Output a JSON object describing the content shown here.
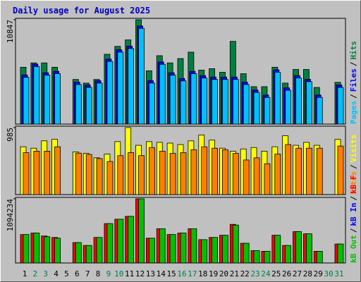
{
  "chart_data": [
    {
      "type": "bar",
      "title": "Daily usage for August 2025",
      "legend_separator": "/",
      "ylim": [
        0,
        10847
      ],
      "yticks": [
        10847
      ],
      "series": [
        {
          "name": "Hits",
          "color": "#008040",
          "values": [
            5910,
            6360,
            6360,
            5910,
            0,
            4640,
            4260,
            4640,
            7260,
            8080,
            8750,
            10847,
            5540,
            7110,
            6360,
            6810,
            7480,
            5610,
            5760,
            5390,
            8600,
            5240,
            3890,
            3890,
            5910,
            4260,
            5680,
            5680,
            3810,
            0,
            4340
          ]
        },
        {
          "name": "Files",
          "color": "#0000ff",
          "values": [
            5110,
            6230,
            5340,
            5490,
            0,
            4360,
            4060,
            4510,
            6760,
            7730,
            8100,
            10200,
            4510,
            6460,
            5340,
            4740,
            5490,
            5040,
            4890,
            4890,
            4890,
            4360,
            3540,
            3020,
            5640,
            3770,
            5040,
            4660,
            3020,
            0,
            4060
          ]
        },
        {
          "name": "Pages",
          "color": "#00c0ff",
          "values": [
            4860,
            5980,
            5090,
            5240,
            0,
            4110,
            3810,
            4260,
            6510,
            7480,
            7850,
            9950,
            4260,
            6210,
            5090,
            4490,
            5240,
            4790,
            4640,
            4640,
            4640,
            4110,
            3290,
            2770,
            5390,
            3520,
            4790,
            4410,
            2770,
            0,
            3810
          ]
        }
      ]
    },
    {
      "type": "bar",
      "legend_separator": "/",
      "ylim": [
        0,
        985
      ],
      "yticks": [
        985
      ],
      "series": [
        {
          "name": "Visits",
          "color": "#ffff00",
          "values": [
            703,
            682,
            790,
            812,
            0,
            628,
            606,
            541,
            595,
            779,
            985,
            725,
            779,
            768,
            757,
            736,
            790,
            876,
            801,
            682,
            638,
            671,
            692,
            638,
            703,
            866,
            725,
            768,
            725,
            0,
            812
          ]
        },
        {
          "name": "Sites",
          "color": "#ff8000",
          "values": [
            617,
            638,
            638,
            703,
            0,
            610,
            590,
            530,
            487,
            573,
            617,
            573,
            692,
            638,
            606,
            617,
            660,
            703,
            682,
            660,
            606,
            509,
            541,
            454,
            595,
            736,
            682,
            682,
            682,
            0,
            714
          ]
        }
      ]
    },
    {
      "type": "bar",
      "legend_separator": "/",
      "ylim": [
        0,
        1094234
      ],
      "yticks": [
        1094234
      ],
      "categories": [
        "1",
        "2",
        "3",
        "4",
        "5",
        "6",
        "7",
        "8",
        "9",
        "10",
        "11",
        "12",
        "13",
        "14",
        "15",
        "16",
        "17",
        "18",
        "19",
        "20",
        "21",
        "22",
        "23",
        "24",
        "25",
        "26",
        "27",
        "28",
        "29",
        "30",
        "31"
      ],
      "weekend_indices": [
        1,
        2,
        8,
        9,
        15,
        16,
        22,
        23,
        29,
        30
      ],
      "weekend_color": "#008040",
      "weekday_color": "#000000",
      "series": [
        {
          "name": "kB F",
          "color": "#ff0000",
          "values": [
            484926,
            509794,
            460058,
            435190,
            0,
            348152,
            298416,
            435190,
            671436,
            746040,
            795776,
            1094234,
            422756,
            584398,
            484926,
            509794,
            584398,
            397888,
            435190,
            472492,
            659002,
            335718,
            211378,
            198944,
            472492,
            298416,
            534662,
            497360,
            198944,
            0,
            323284
          ]
        },
        {
          "name": "kB In",
          "color": "#0000ff",
          "values": [
            0,
            0,
            0,
            0,
            0,
            0,
            0,
            0,
            0,
            0,
            0,
            0,
            0,
            0,
            0,
            0,
            0,
            0,
            0,
            0,
            0,
            0,
            0,
            0,
            0,
            0,
            0,
            0,
            0,
            0,
            0
          ]
        },
        {
          "name": "kB Out",
          "color": "#00c000",
          "values": [
            484926,
            509794,
            447624,
            422756,
            0,
            348152,
            298416,
            435190,
            671436,
            746040,
            795776,
            1094234,
            422756,
            584398,
            484926,
            509794,
            584398,
            397888,
            435190,
            472492,
            646568,
            335718,
            211378,
            198944,
            472492,
            298416,
            534662,
            497360,
            198944,
            0,
            323284
          ]
        }
      ]
    }
  ]
}
